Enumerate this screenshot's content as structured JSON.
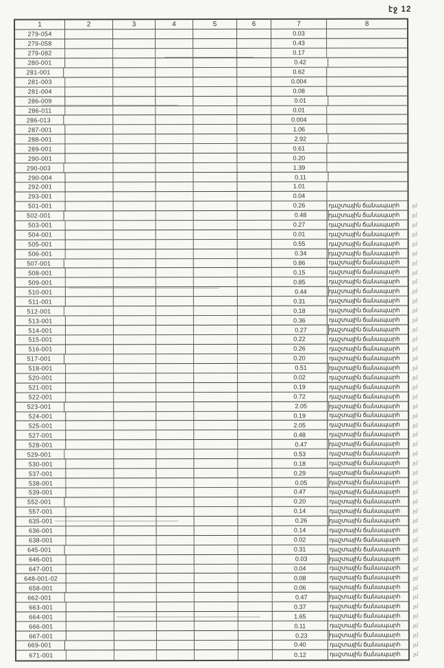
{
  "page": {
    "label": "էջ 12"
  },
  "table": {
    "headers": [
      "1",
      "2",
      "3",
      "4",
      "5",
      "6",
      "7",
      "8"
    ],
    "note_text": "դաշտային ճանապարհ",
    "edge_fragment": "չմ",
    "rows": [
      {
        "code": "279-054",
        "value": "0.03",
        "note": "",
        "frag": ""
      },
      {
        "code": "279-058",
        "value": "0.43",
        "note": "",
        "frag": ""
      },
      {
        "code": "279-082",
        "value": "0.17",
        "note": "",
        "frag": ""
      },
      {
        "code": "280-001",
        "value": "0.42",
        "note": "",
        "frag": ""
      },
      {
        "code": "281-001",
        "value": "0.62",
        "note": "",
        "frag": ""
      },
      {
        "code": "281-003",
        "value": "0.004",
        "note": "",
        "frag": ""
      },
      {
        "code": "281-004",
        "value": "0.08",
        "note": "",
        "frag": ""
      },
      {
        "code": "286-009",
        "value": "0.01",
        "note": "",
        "frag": ""
      },
      {
        "code": "286-011",
        "value": "0.01",
        "note": "",
        "frag": ""
      },
      {
        "code": "286-013",
        "value": "0.004",
        "note": "",
        "frag": ""
      },
      {
        "code": "287-001",
        "value": "1.06",
        "note": "",
        "frag": ""
      },
      {
        "code": "288-001",
        "value": "2.92",
        "note": "",
        "frag": ""
      },
      {
        "code": "289-001",
        "value": "0.61",
        "note": "",
        "frag": ""
      },
      {
        "code": "290-001",
        "value": "0.20",
        "note": "",
        "frag": ""
      },
      {
        "code": "290-003",
        "value": "1.39",
        "note": "",
        "frag": ""
      },
      {
        "code": "290-004",
        "value": "0.11",
        "note": "",
        "frag": ""
      },
      {
        "code": "292-001",
        "value": "1.01",
        "note": "",
        "frag": ""
      },
      {
        "code": "293-001",
        "value": "0.04",
        "note": "",
        "frag": ""
      },
      {
        "code": "501-001",
        "value": "0.26",
        "note": "դաշտային ճանապարհ",
        "frag": "չմ"
      },
      {
        "code": "502-001",
        "value": "0.48",
        "note": "դաշտային ճանապարհ",
        "frag": "չմ"
      },
      {
        "code": "503-001",
        "value": "0.27",
        "note": "դաշտային ճանապարհ",
        "frag": "չմ"
      },
      {
        "code": "504-001",
        "value": "0.01",
        "note": "դաշտային ճանապարհ",
        "frag": "չմ"
      },
      {
        "code": "505-001",
        "value": "0.55",
        "note": "դաշտային ճանապարհ",
        "frag": "չմ"
      },
      {
        "code": "506-001",
        "value": "0.34",
        "note": "դաշտային ճանապարհ",
        "frag": "չմ"
      },
      {
        "code": "507-001",
        "value": "0.86",
        "note": "դաշտային ճանապարհ",
        "frag": "չմ"
      },
      {
        "code": "508-001",
        "value": "0.15",
        "note": "դաշտային ճանապարհ",
        "frag": "չմ"
      },
      {
        "code": "509-001",
        "value": "0.85",
        "note": "դաշտային ճանապարհ",
        "frag": "չմ"
      },
      {
        "code": "510-001",
        "value": "0.44",
        "note": "դաշտային ճանապարհ",
        "frag": "չմ"
      },
      {
        "code": "511-001",
        "value": "0.31",
        "note": "դաշտային ճանապարհ",
        "frag": "չմ"
      },
      {
        "code": "512-001",
        "value": "0.18",
        "note": "դաշտային ճանապարհ",
        "frag": "չմ"
      },
      {
        "code": "513-001",
        "value": "0.36",
        "note": "դաշտային ճանապարհ",
        "frag": "չմ"
      },
      {
        "code": "514-001",
        "value": "0.27",
        "note": "դաշտային ճանապարհ",
        "frag": "չմ"
      },
      {
        "code": "515-001",
        "value": "0.22",
        "note": "դաշտային ճանապարհ",
        "frag": "չմ"
      },
      {
        "code": "516-001",
        "value": "0.26",
        "note": "դաշտային ճանապարհ",
        "frag": "չմ"
      },
      {
        "code": "517-001",
        "value": "0.20",
        "note": "դաշտային ճանապարհ",
        "frag": "չմ"
      },
      {
        "code": "518-001",
        "value": "0.51",
        "note": "դաշտային ճանապարհ",
        "frag": "չմ"
      },
      {
        "code": "520-001",
        "value": "0.02",
        "note": "դաշտային ճանապարհ",
        "frag": "չմ"
      },
      {
        "code": "521-001",
        "value": "0.19",
        "note": "դաշտային ճանապարհ",
        "frag": "չմ"
      },
      {
        "code": "522-001",
        "value": "0.72",
        "note": "դաշտային ճանապարհ",
        "frag": "չմ"
      },
      {
        "code": "523-001",
        "value": "2.05",
        "note": "դաշտային ճանապարհ",
        "frag": "չմ"
      },
      {
        "code": "524-001",
        "value": "0.19",
        "note": "դաշտային ճանապարհ",
        "frag": "չմ"
      },
      {
        "code": "525-001",
        "value": "2.05",
        "note": "դաշտային ճանապարհ",
        "frag": "չմ"
      },
      {
        "code": "527-001",
        "value": "0.48",
        "note": "դաշտային ճանապարհ",
        "frag": "չմ"
      },
      {
        "code": "528-001",
        "value": "0.47",
        "note": "դաշտային ճանապարհ",
        "frag": "չմ"
      },
      {
        "code": "529-001",
        "value": "0.53",
        "note": "դաշտային ճանապարհ",
        "frag": "չմ"
      },
      {
        "code": "530-001",
        "value": "0.18",
        "note": "դաշտային ճանապարհ",
        "frag": "չմ"
      },
      {
        "code": "537-001",
        "value": "0.29",
        "note": "դաշտային ճանապարհ",
        "frag": "չմ"
      },
      {
        "code": "538-001",
        "value": "0.05",
        "note": "դաշտային ճանապարհ",
        "frag": "չմ"
      },
      {
        "code": "539-001",
        "value": "0.47",
        "note": "դաշտային ճանապարհ",
        "frag": "չմ"
      },
      {
        "code": "552-001",
        "value": "0.20",
        "note": "դաշտային ճանապարհ",
        "frag": "չմ"
      },
      {
        "code": "557-001",
        "value": "0.14",
        "note": "դաշտային ճանապարհ",
        "frag": "չմ"
      },
      {
        "code": "635-001",
        "value": "0.26",
        "note": "դաշտային ճանապարհ",
        "frag": "չմ"
      },
      {
        "code": "636-001",
        "value": "0.14",
        "note": "դաշտային ճանապարհ",
        "frag": "չմ"
      },
      {
        "code": "638-001",
        "value": "0.02",
        "note": "դաշտային ճանապարհ",
        "frag": "չմ"
      },
      {
        "code": "645-001",
        "value": "0.31",
        "note": "դաշտային ճանապարհ",
        "frag": "չմ"
      },
      {
        "code": "646-001",
        "value": "0.03",
        "note": "դաշտային ճանապարհ",
        "frag": "չմ"
      },
      {
        "code": "647-001",
        "value": "0.04",
        "note": "դաշտային ճանապարհ",
        "frag": "չմ"
      },
      {
        "code": "648-001-02",
        "value": "0.08",
        "note": "դաշտային ճանապարհ",
        "frag": "չմ"
      },
      {
        "code": "658-001",
        "value": "0.06",
        "note": "դաշտային ճանապարհ",
        "frag": "չմ"
      },
      {
        "code": "662-001",
        "value": "0.47",
        "note": "դաշտային ճանապարհ",
        "frag": "չմ"
      },
      {
        "code": "663-001",
        "value": "0.37",
        "note": "դաշտային ճանապարհ",
        "frag": "չմ"
      },
      {
        "code": "664-001",
        "value": "1.65",
        "note": "դաշտային ճանապարհ",
        "frag": "չմ"
      },
      {
        "code": "666-001",
        "value": "0.11",
        "note": "դաշտային ճանապարհ",
        "frag": "չմ"
      },
      {
        "code": "667-001",
        "value": "0.23",
        "note": "դաշտային ճանապարհ",
        "frag": "չմ"
      },
      {
        "code": "669-001",
        "value": "0.40",
        "note": "դաշտային ճանապարհ",
        "frag": "չմ"
      },
      {
        "code": "671-001",
        "value": "0.12",
        "note": "դաշտային ճանապարհ",
        "frag": "չմ"
      }
    ]
  }
}
